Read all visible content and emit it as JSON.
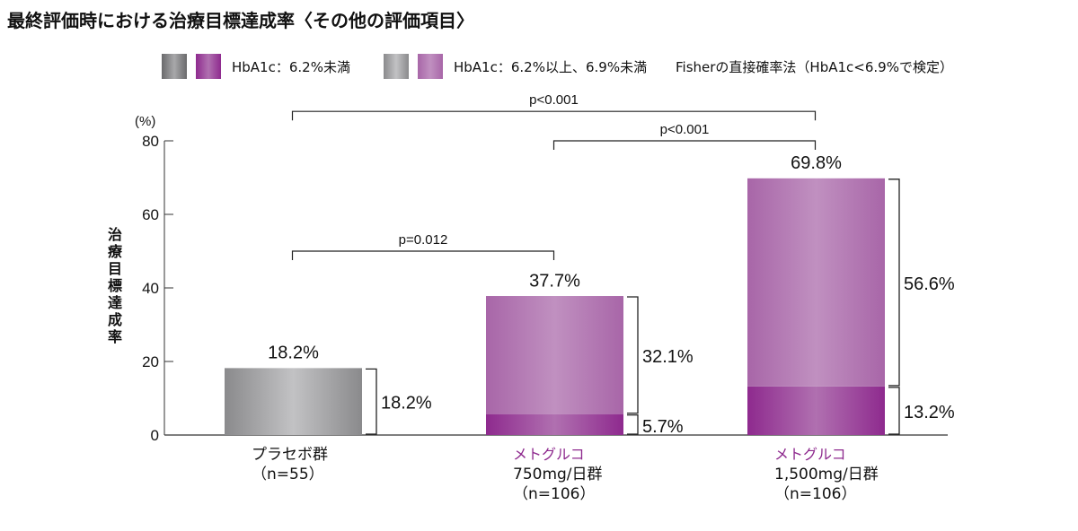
{
  "chart_data": {
    "type": "bar",
    "stacked": true,
    "title": "最終評価時における治療目標達成率〈その他の評価項目〉",
    "ylabel": "治療目標達成率",
    "yunit": "(%)",
    "ylim": [
      0,
      80
    ],
    "yticks": [
      0,
      20,
      40,
      60,
      80
    ],
    "grid": false,
    "legend": {
      "placement": "top",
      "entries": [
        "HbA1c：6.2%未満",
        "HbA1c：6.2%以上、6.9%未満"
      ],
      "note": "Fisherの直接確率法（HbA1c<6.9%で検定）"
    },
    "categories": [
      {
        "brand": "",
        "lines": [
          "プラセボ群",
          "（n=55）"
        ]
      },
      {
        "brand": "メトグルコ",
        "lines": [
          "750mg/日群",
          "（n=106）"
        ]
      },
      {
        "brand": "メトグルコ",
        "lines": [
          "1,500mg/日群",
          "（n=106）"
        ]
      }
    ],
    "groups": [
      {
        "total": 18.2,
        "total_label": "18.2%",
        "segments": [
          {
            "value": 18.2,
            "label": "18.2%",
            "kind": "gray"
          }
        ]
      },
      {
        "total": 37.7,
        "total_label": "37.7%",
        "segments": [
          {
            "value": 5.7,
            "label": "5.7%",
            "kind": "dark"
          },
          {
            "value": 32.1,
            "label": "32.1%",
            "kind": "light"
          }
        ]
      },
      {
        "total": 69.8,
        "total_label": "69.8%",
        "segments": [
          {
            "value": 13.2,
            "label": "13.2%",
            "kind": "dark"
          },
          {
            "value": 56.6,
            "label": "56.6%",
            "kind": "light"
          }
        ]
      }
    ],
    "comparisons": [
      {
        "from": 0,
        "to": 1,
        "label": "p=0.012",
        "level": 50
      },
      {
        "from": 1,
        "to": 2,
        "label": "p<0.001",
        "level": 80
      },
      {
        "from": 0,
        "to": 2,
        "label": "p<0.001",
        "level": 88
      }
    ],
    "colors": {
      "purple_dark": "#8e2a8e",
      "purple_light": "#b47ab4",
      "gray_dark": "#777777",
      "gray_light": "#b8b8b8",
      "brand_text": "#8e2a8e"
    }
  }
}
